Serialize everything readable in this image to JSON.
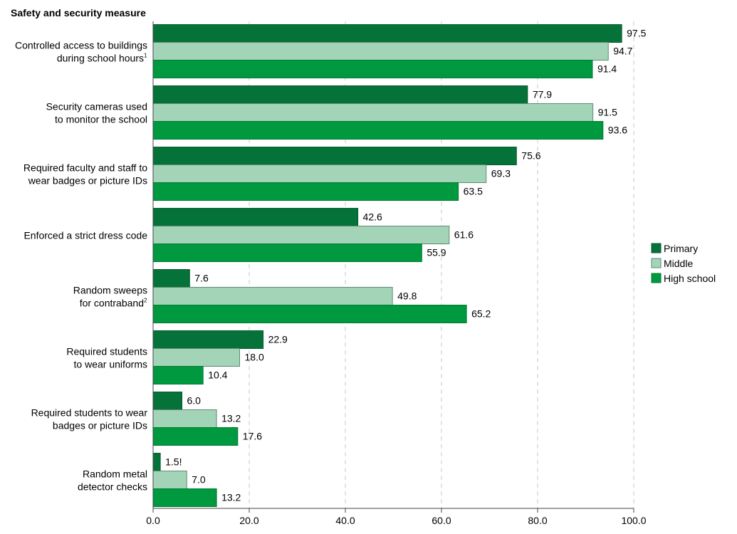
{
  "chart_data": {
    "type": "bar",
    "orientation": "horizontal",
    "title": "Safety and security measure",
    "categories": [
      {
        "lines": [
          "Controlled access to buildings",
          "during school hours"
        ],
        "footnote": "1"
      },
      {
        "lines": [
          "Security cameras used",
          "to monitor the school"
        ],
        "footnote": ""
      },
      {
        "lines": [
          "Required faculty and staff to",
          "wear badges or picture IDs"
        ],
        "footnote": ""
      },
      {
        "lines": [
          "Enforced a strict dress code"
        ],
        "footnote": ""
      },
      {
        "lines": [
          "Random sweeps",
          "for contraband"
        ],
        "footnote": "2"
      },
      {
        "lines": [
          "Required students",
          "to wear uniforms"
        ],
        "footnote": ""
      },
      {
        "lines": [
          "Required students to wear",
          "badges or picture IDs"
        ],
        "footnote": ""
      },
      {
        "lines": [
          "Random metal",
          "detector checks"
        ],
        "footnote": ""
      }
    ],
    "series": [
      {
        "name": "Primary",
        "color": "#057339",
        "border": "#045a2c",
        "values": [
          97.5,
          77.9,
          75.6,
          42.6,
          7.6,
          22.9,
          6.0,
          1.5
        ],
        "labels": [
          "97.5",
          "77.9",
          "75.6",
          "42.6",
          "7.6",
          "22.9",
          "6.0",
          "1.5!"
        ]
      },
      {
        "name": "Middle",
        "color": "#a3d4b7",
        "border": "#5f8a72",
        "values": [
          94.7,
          91.5,
          69.3,
          61.6,
          49.8,
          18.0,
          13.2,
          7.0
        ],
        "labels": [
          "94.7",
          "91.5",
          "69.3",
          "61.6",
          "49.8",
          "18.0",
          "13.2",
          "7.0"
        ]
      },
      {
        "name": "High school",
        "color": "#00993f",
        "border": "#007a32",
        "values": [
          91.4,
          93.6,
          63.5,
          55.9,
          65.2,
          10.4,
          17.6,
          13.2
        ],
        "labels": [
          "91.4",
          "93.6",
          "63.5",
          "55.9",
          "65.2",
          "10.4",
          "17.6",
          "13.2"
        ]
      }
    ],
    "xlim": [
      0,
      100
    ],
    "xticks": [
      0,
      20,
      40,
      60,
      80,
      100
    ],
    "xtick_labels": [
      "0.0",
      "20.0",
      "40.0",
      "60.0",
      "80.0",
      "100.0"
    ],
    "grid": true,
    "legend_position": "right"
  }
}
